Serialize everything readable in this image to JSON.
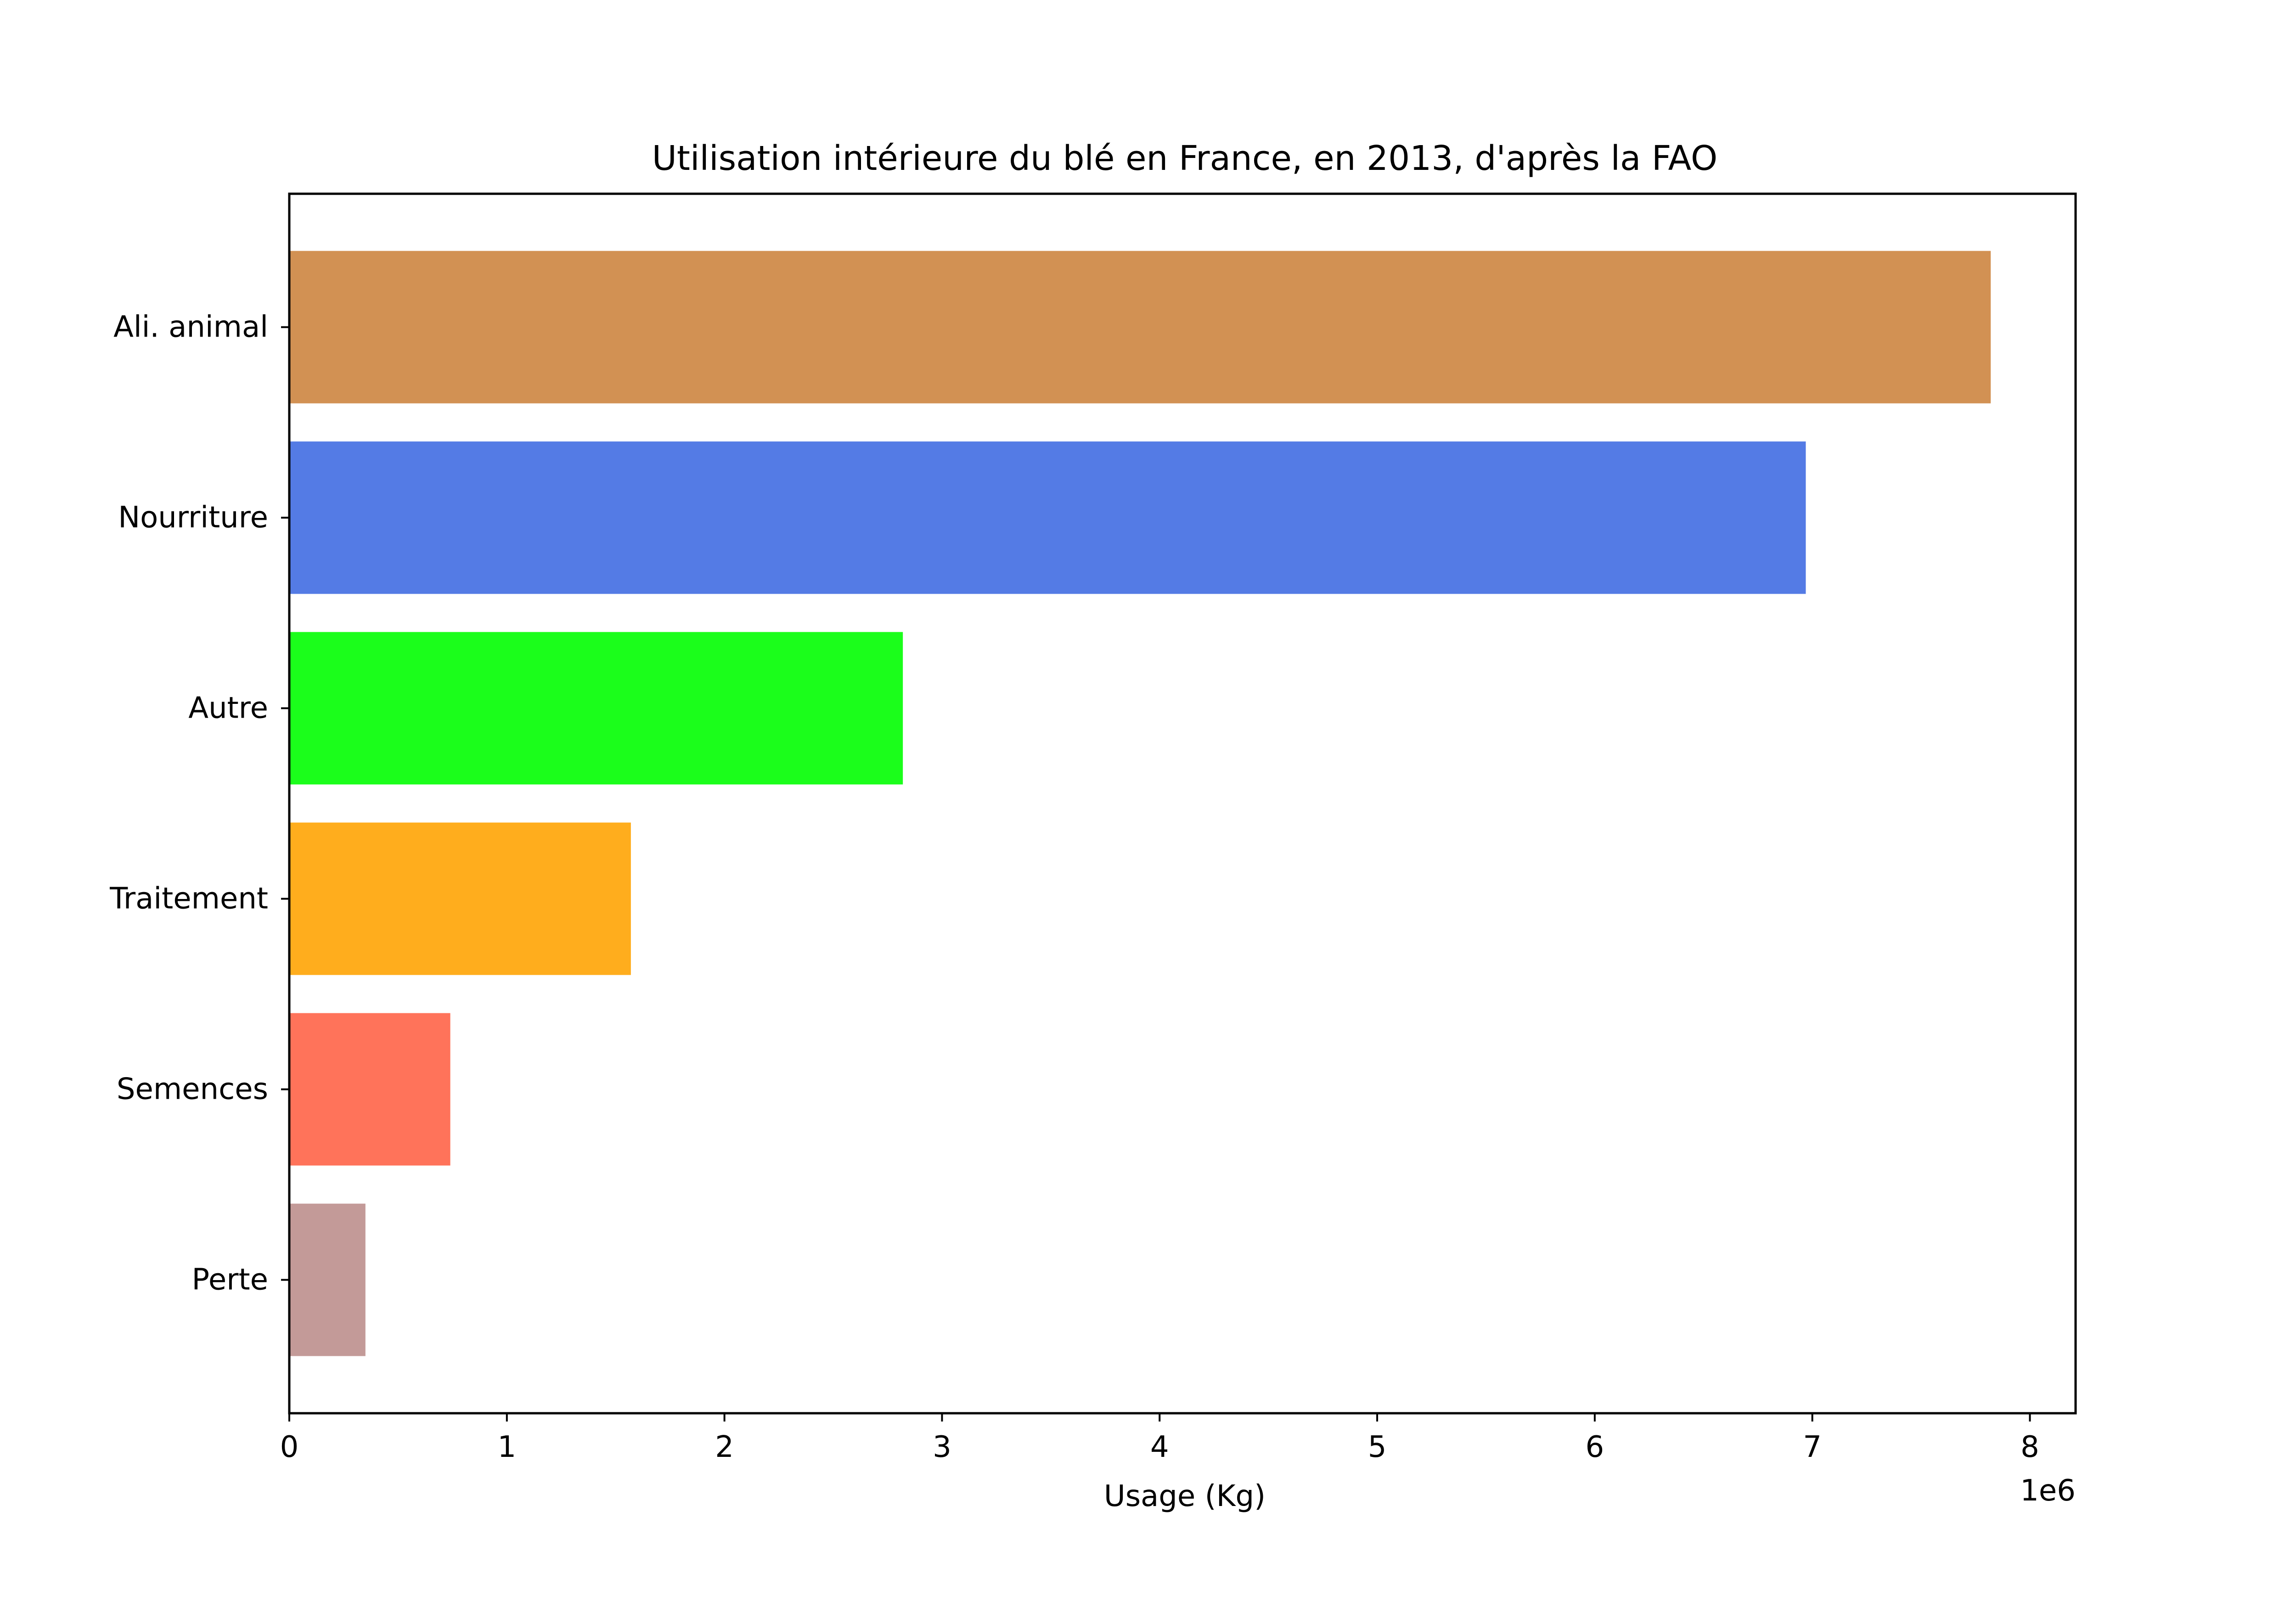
{
  "chart_data": {
    "type": "bar",
    "orientation": "horizontal",
    "title": "Utilisation intérieure du blé en France, en 2013, d'après la FAO",
    "xlabel": "Usage (Kg)",
    "ylabel": "",
    "x_offset_label": "1e6",
    "x_scale": 1000000,
    "xlim": [
      0,
      8210000
    ],
    "x_ticks": [
      0,
      1,
      2,
      3,
      4,
      5,
      6,
      7,
      8
    ],
    "categories": [
      "Ali. animal",
      "Nourriture",
      "Autre",
      "Traitement",
      "Semences",
      "Perte"
    ],
    "values": [
      7820000,
      6970000,
      2820000,
      1570000,
      740000,
      350000
    ],
    "colors": [
      "#d29153",
      "#547be5",
      "#1bfe1b",
      "#ffad1d",
      "#ff735a",
      "#c39a98"
    ],
    "grid": false,
    "legend": "none"
  }
}
